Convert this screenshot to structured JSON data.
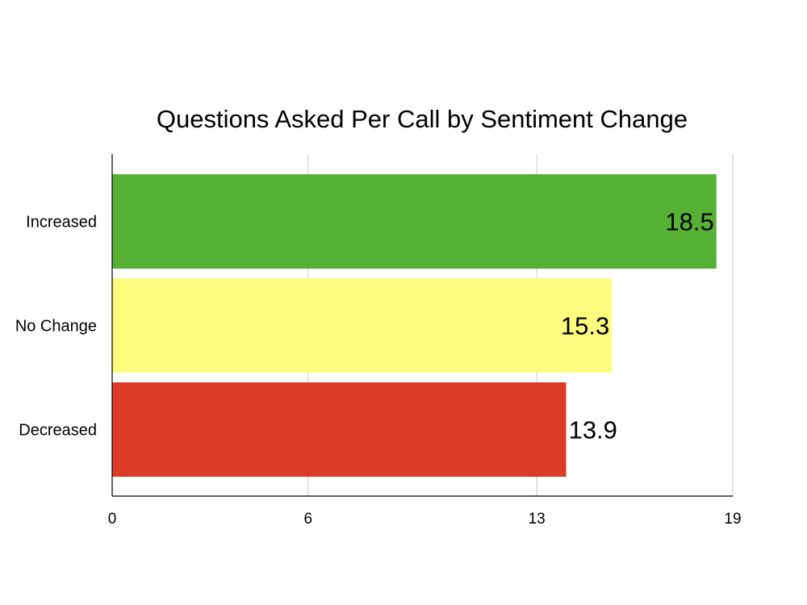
{
  "chart_data": {
    "type": "bar",
    "orientation": "horizontal",
    "title": "Questions Asked Per Call by Sentiment Change",
    "xlabel": "",
    "ylabel": "",
    "categories": [
      "Increased",
      "No Change",
      "Decreased"
    ],
    "values": [
      18.5,
      15.3,
      13.9
    ],
    "data_labels": [
      "18.5",
      "15.3",
      "13.9"
    ],
    "colors": [
      "#56b034",
      "#fcfc7f",
      "#dc3b26"
    ],
    "xlim": [
      0,
      19
    ],
    "x_ticks": [
      0,
      6,
      13,
      19
    ],
    "x_tick_labels": [
      "0",
      "6",
      "13",
      "19"
    ],
    "grid": "vertical",
    "legend": "none"
  }
}
